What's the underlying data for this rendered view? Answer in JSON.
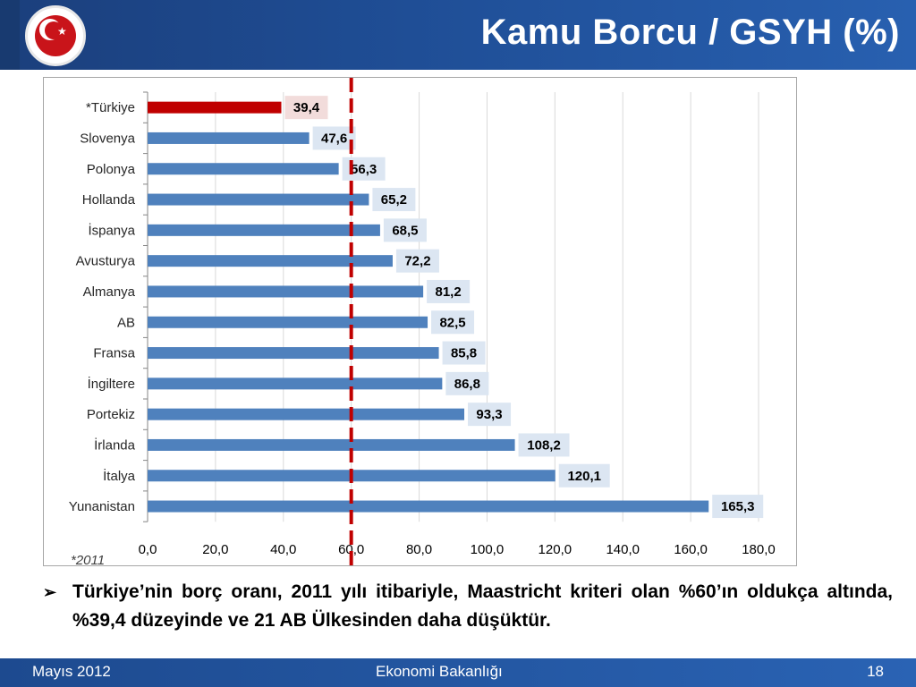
{
  "header": {
    "title": "Kamu Borcu / GSYH (%)"
  },
  "chart_data": {
    "type": "bar",
    "orientation": "horizontal",
    "categories": [
      "*Türkiye",
      "Slovenya",
      "Polonya",
      "Hollanda",
      "İspanya",
      "Avusturya",
      "Almanya",
      "AB",
      "Fransa",
      "İngiltere",
      "Portekiz",
      "İrlanda",
      "İtalya",
      "Yunanistan"
    ],
    "values": [
      39.4,
      47.6,
      56.3,
      65.2,
      68.5,
      72.2,
      81.2,
      82.5,
      85.8,
      86.8,
      93.3,
      108.2,
      120.1,
      165.3
    ],
    "value_labels": [
      "39,4",
      "47,6",
      "56,3",
      "65,2",
      "68,5",
      "72,2",
      "81,2",
      "82,5",
      "85,8",
      "86,8",
      "93,3",
      "108,2",
      "120,1",
      "165,3"
    ],
    "highlight_index": 0,
    "xlim": [
      0,
      180
    ],
    "x_ticks": [
      0,
      20,
      40,
      60,
      80,
      100,
      120,
      140,
      160,
      180
    ],
    "x_tick_labels": [
      "0,0",
      "20,0",
      "40,0",
      "60,0",
      "80,0",
      "100,0",
      "120,0",
      "140,0",
      "160,0",
      "180,0"
    ],
    "reference_line": 60,
    "note": "*2011",
    "grid": true,
    "colors": {
      "bar": "#4f81bd",
      "highlight": "#c00000",
      "reference": "#c00000",
      "label_bg": "#dce6f2",
      "highlight_label_bg": "#f2dcdb"
    }
  },
  "bullet": {
    "text": "Türkiye’nin borç oranı, 2011 yılı itibariyle, Maastricht kriteri olan %60’ın oldukça altında, %39,4 düzeyinde ve 21 AB Ülkesinden daha düşüktür."
  },
  "footer": {
    "date": "Mayıs 2012",
    "center": "Ekonomi Bakanlığı",
    "page": "18"
  }
}
